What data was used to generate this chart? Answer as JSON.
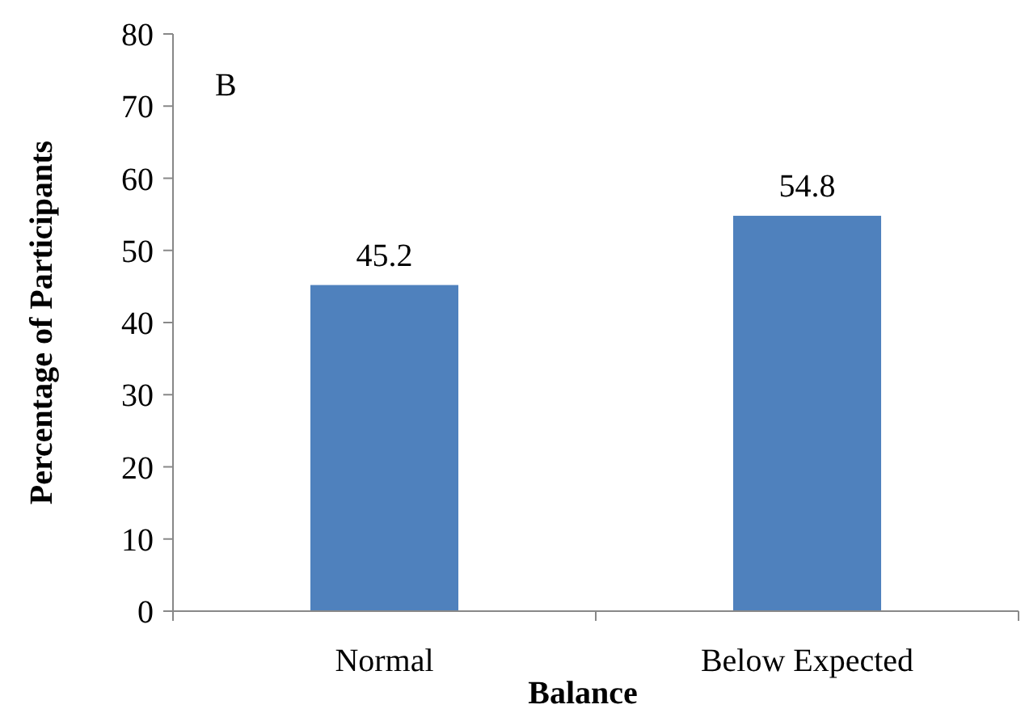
{
  "chart_data": {
    "type": "bar",
    "xlabel": "Balance",
    "ylabel": "Percentage of Participants",
    "categories": [
      "Normal",
      "Below Expected"
    ],
    "values": [
      45.2,
      54.8
    ],
    "color": "#4f81bd",
    "ylim": [
      0,
      80
    ],
    "yticks": [
      0,
      10,
      20,
      30,
      40,
      50,
      60,
      70,
      80
    ],
    "data_labels": true,
    "annotations": [
      "B"
    ]
  }
}
